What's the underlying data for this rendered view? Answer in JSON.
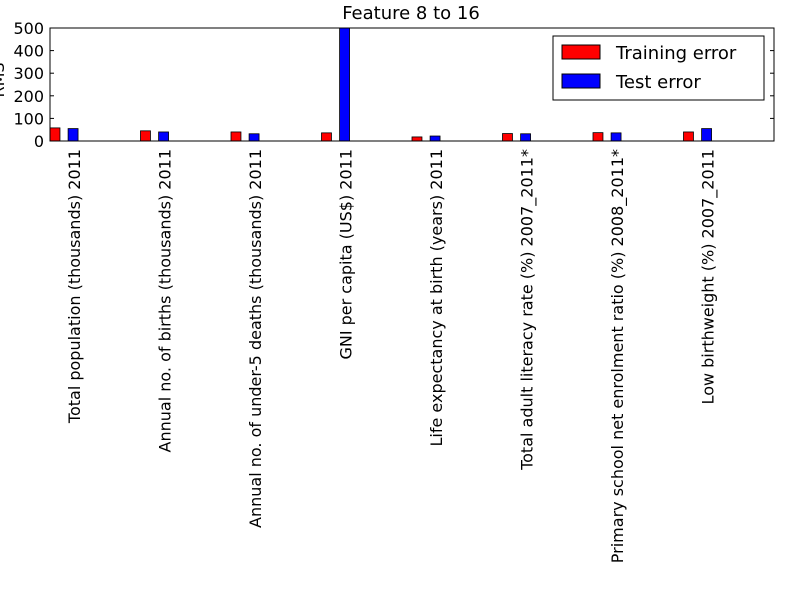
{
  "chart_data": {
    "type": "bar",
    "title": "Feature 8 to 16",
    "xlabel": "",
    "ylabel": "RMS",
    "ylim": [
      0,
      500
    ],
    "yticks": [
      0,
      100,
      200,
      300,
      400,
      500
    ],
    "grid": false,
    "legend_position": "top-right",
    "categories": [
      "Total population (thousands) 2011",
      "Annual no. of births (thousands) 2011",
      "Annual no. of under-5 deaths (thousands) 2011",
      "GNI per capita (US$) 2011",
      "Life expectancy at birth (years) 2011",
      "Total adult literacy rate (%) 2007_2011*",
      "Primary school net enrolment ratio (%) 2008_2011*",
      "Low birthweight (%) 2007_2011"
    ],
    "series": [
      {
        "name": "Training error",
        "color": "#ff0000",
        "values": [
          58,
          45,
          40,
          36,
          18,
          33,
          37,
          40
        ]
      },
      {
        "name": "Test error",
        "color": "#0000ff",
        "values": [
          55,
          40,
          32,
          500,
          22,
          32,
          36,
          55
        ]
      }
    ]
  }
}
